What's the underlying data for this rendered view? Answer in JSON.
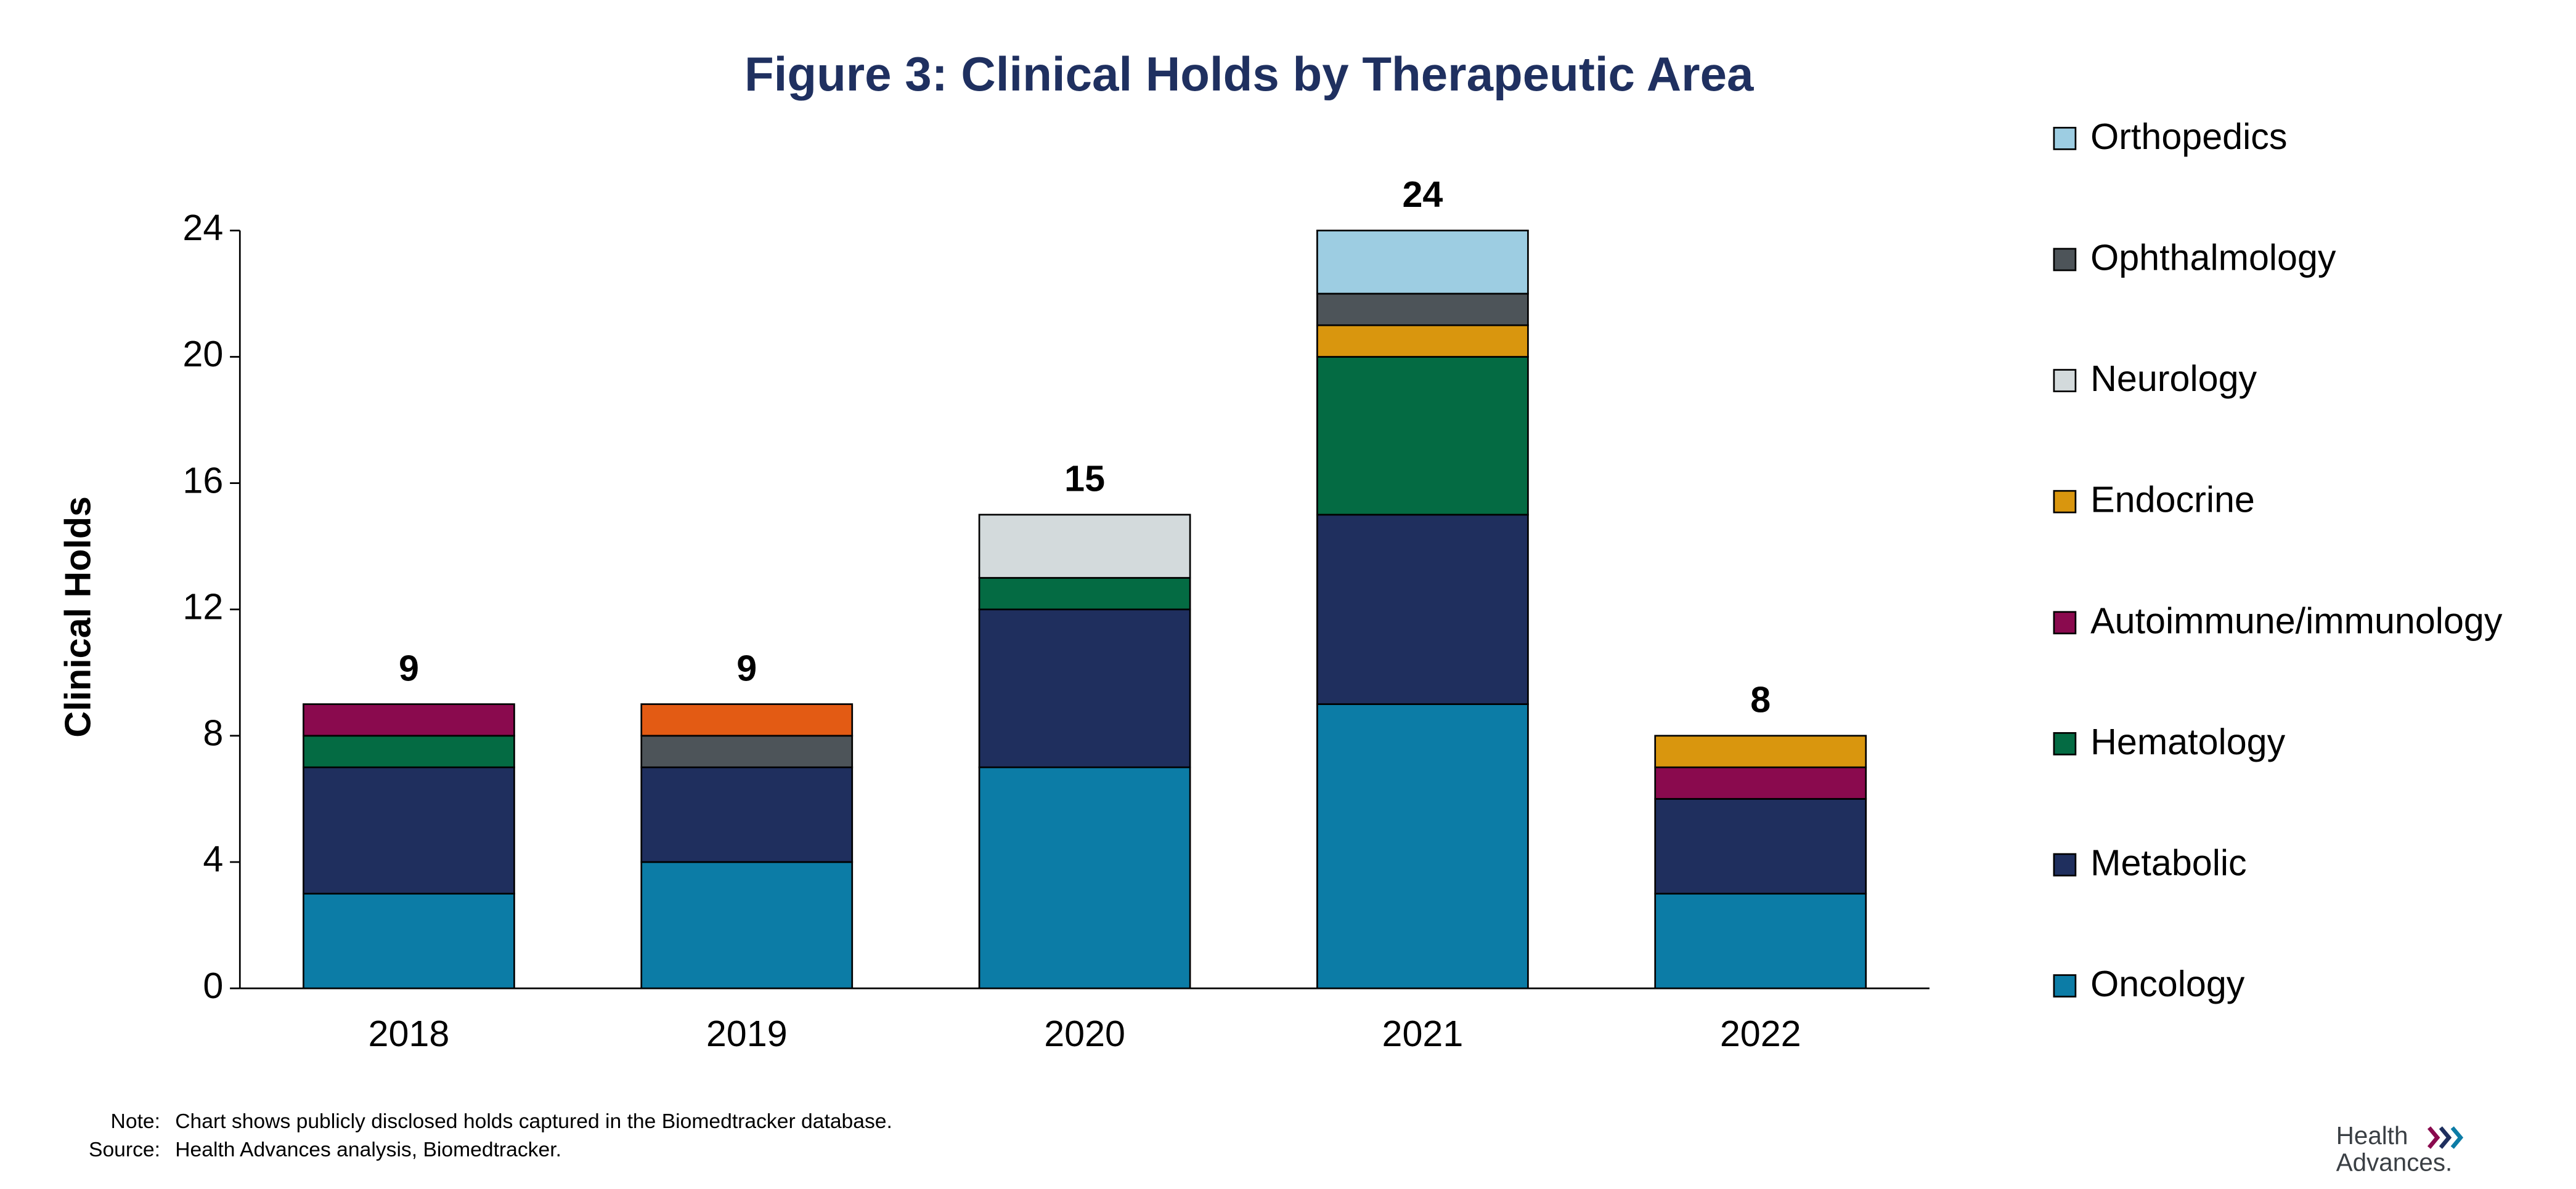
{
  "chart_data": {
    "type": "stacked_bar",
    "title": "Figure 3: Clinical Holds by Therapeutic Area",
    "y_label": "Clinical Holds",
    "categories": [
      "2018",
      "2019",
      "2020",
      "2021",
      "2022"
    ],
    "series": [
      {
        "name": "Oncology",
        "color": "#0c7ca6",
        "values": [
          3,
          4,
          7,
          9,
          3
        ]
      },
      {
        "name": "Metabolic",
        "color": "#1f2f5e",
        "values": [
          4,
          3,
          5,
          6,
          3
        ]
      },
      {
        "name": "Hematology",
        "color": "#046b43",
        "values": [
          1,
          0,
          1,
          5,
          0
        ]
      },
      {
        "name": "Autoimmune/immunology",
        "color": "#8a0a4e",
        "values": [
          1,
          0,
          0,
          0,
          1
        ]
      },
      {
        "name": "Endocrine",
        "color": "#d9960e",
        "values": [
          0,
          0,
          0,
          1,
          1
        ]
      },
      {
        "name": "Neurology",
        "color": "#d3dadc",
        "values": [
          0,
          0,
          2,
          0,
          0
        ]
      },
      {
        "name": "Ophthalmology",
        "color": "#4d5459",
        "values": [
          0,
          1,
          0,
          1,
          0
        ]
      },
      {
        "name": null,
        "color": "#e35b14",
        "values": [
          0,
          1,
          0,
          0,
          0
        ]
      },
      {
        "name": "Orthopedics",
        "color": "#9dcde2",
        "values": [
          0,
          0,
          0,
          2,
          0
        ]
      }
    ],
    "totals": [
      9,
      9,
      15,
      24,
      8
    ],
    "ylim": [
      0,
      24
    ],
    "yticks": [
      0,
      4,
      8,
      12,
      16,
      20,
      24
    ],
    "grid": false,
    "legend": "right"
  },
  "footer": {
    "note_label": "Note:",
    "note": "Chart shows publicly disclosed holds captured in the Biomedtracker database.",
    "source_label": "Source:",
    "source": "Health Advances analysis, Biomedtracker.",
    "logo_top": "Health",
    "logo_bottom": "Advances."
  }
}
